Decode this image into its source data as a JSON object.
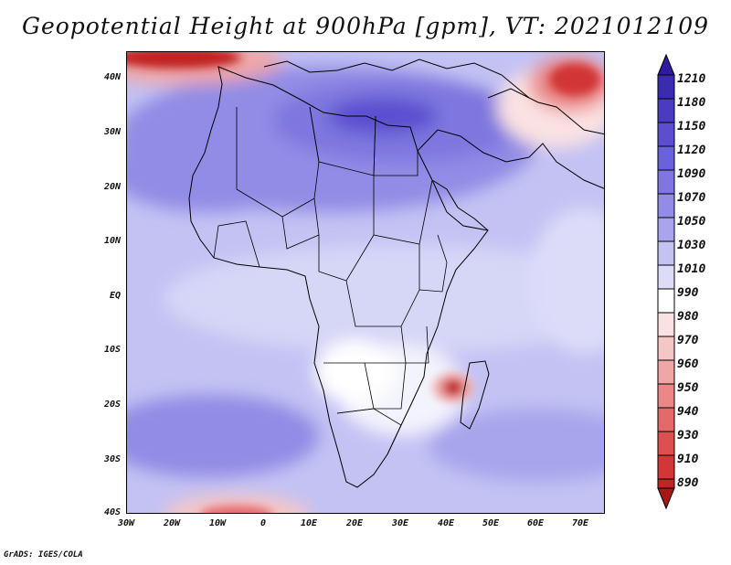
{
  "title": "Geopotential Height at 900hPa [gpm], VT: 2021012109",
  "footer": "GrADS: IGES/COLA",
  "map": {
    "region": "Africa",
    "variable": "Geopotential Height",
    "level": "900hPa",
    "units": "gpm",
    "valid_time": "2021012109",
    "lon_range": [
      -30,
      75
    ],
    "lat_range": [
      -40,
      45
    ],
    "lat_ticks": [
      "40N",
      "30N",
      "20N",
      "10N",
      "EQ",
      "10S",
      "20S",
      "30S",
      "40S"
    ],
    "lon_ticks": [
      "30W",
      "20W",
      "10W",
      "0",
      "10E",
      "20E",
      "30E",
      "40E",
      "50E",
      "60E",
      "70E"
    ]
  },
  "colorbar": {
    "levels": [
      "1210",
      "1180",
      "1150",
      "1120",
      "1090",
      "1070",
      "1050",
      "1030",
      "1010",
      "990",
      "980",
      "970",
      "960",
      "950",
      "940",
      "930",
      "910",
      "890"
    ],
    "colors": {
      "top_arrow": "#2e1b9e",
      "blue_1": "#3a2bb0",
      "blue_2": "#4a3cc2",
      "blue_3": "#5a4fcf",
      "blue_4": "#6a62d8",
      "blue_5": "#7d77df",
      "blue_6": "#918ce5",
      "blue_7": "#a8a5ec",
      "blue_8": "#c3c2f3",
      "blue_9": "#dcdcf9",
      "white": "#ffffff",
      "red_1": "#fbe2e2",
      "red_2": "#f6c6c6",
      "red_3": "#f0a6a6",
      "red_4": "#ea8787",
      "red_5": "#e46a6a",
      "red_6": "#de4f4f",
      "red_7": "#d23636",
      "red_8": "#c02424",
      "bottom_arrow": "#a81717"
    }
  }
}
